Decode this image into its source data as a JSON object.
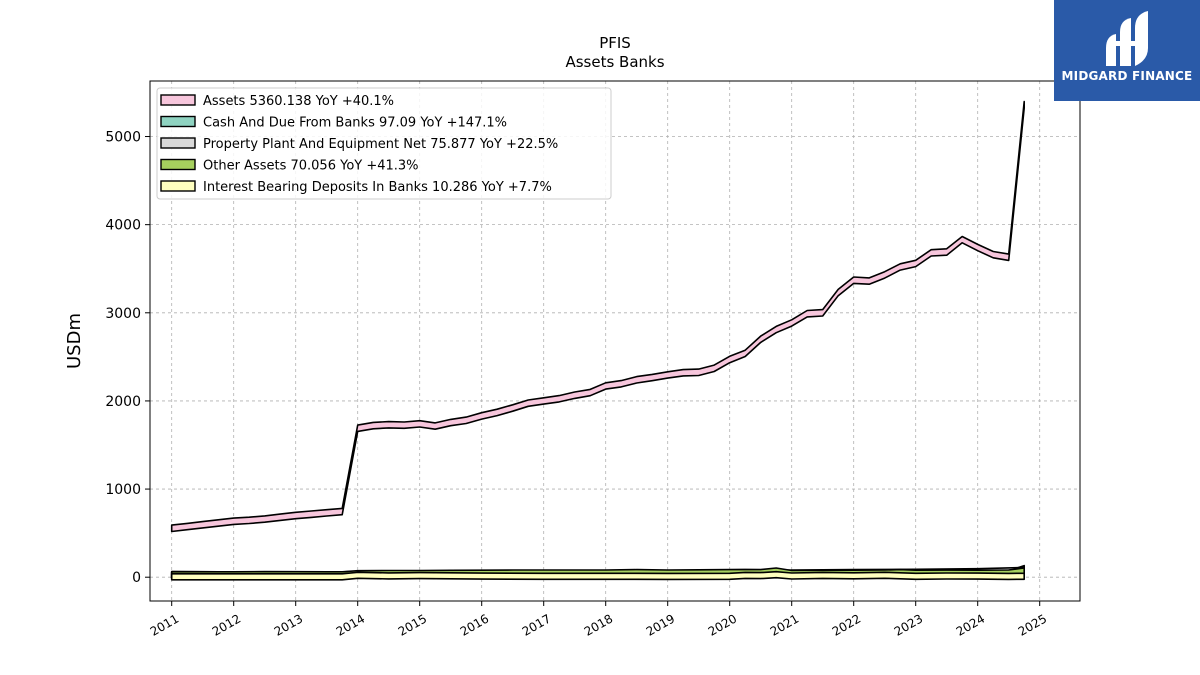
{
  "brand": {
    "name": "MIDGARD FINANCE",
    "color": "#2a5aa8",
    "icon": "midgard-logo-icon"
  },
  "chart_data": {
    "type": "area",
    "title": "PFIS",
    "subtitle": "Assets Banks",
    "ylabel": "USDm",
    "xlabel": "",
    "ylim": [
      -270,
      5630
    ],
    "xlim": [
      2010.65,
      2025.65
    ],
    "yticks": [
      0,
      1000,
      2000,
      3000,
      4000,
      5000
    ],
    "xticks": [
      "2011",
      "2012",
      "2013",
      "2014",
      "2015",
      "2016",
      "2017",
      "2018",
      "2019",
      "2020",
      "2021",
      "2022",
      "2023",
      "2024",
      "2025"
    ],
    "grid": true,
    "legend_position": "top-left",
    "series": [
      {
        "name": "Assets  5360.138 YoY +40.1%",
        "color": "#f7c6dc",
        "x": [
          2011.0,
          2011.25,
          2011.5,
          2011.75,
          2012.0,
          2012.25,
          2012.5,
          2012.75,
          2013.0,
          2013.25,
          2013.5,
          2013.75,
          2014.0,
          2014.25,
          2014.5,
          2014.75,
          2015.0,
          2015.25,
          2015.5,
          2015.75,
          2016.0,
          2016.25,
          2016.5,
          2016.75,
          2017.0,
          2017.25,
          2017.5,
          2017.75,
          2018.0,
          2018.25,
          2018.5,
          2018.75,
          2019.0,
          2019.25,
          2019.5,
          2019.75,
          2020.0,
          2020.25,
          2020.5,
          2020.75,
          2021.0,
          2021.25,
          2021.5,
          2021.75,
          2022.0,
          2022.25,
          2022.5,
          2022.75,
          2023.0,
          2023.25,
          2023.5,
          2023.75,
          2024.0,
          2024.25,
          2024.5,
          2024.75
        ],
        "values": [
          555,
          575,
          595,
          615,
          635,
          645,
          660,
          680,
          700,
          715,
          730,
          745,
          1690,
          1720,
          1730,
          1725,
          1740,
          1715,
          1755,
          1780,
          1830,
          1870,
          1920,
          1975,
          2000,
          2025,
          2065,
          2095,
          2170,
          2195,
          2240,
          2265,
          2295,
          2320,
          2325,
          2370,
          2470,
          2540,
          2700,
          2810,
          2885,
          2990,
          3000,
          3230,
          3370,
          3360,
          3430,
          3520,
          3560,
          3680,
          3690,
          3830,
          3740,
          3660,
          3630,
          5360.138
        ]
      },
      {
        "name": "Cash And Due From Banks  97.09 YoY +147.1%",
        "color": "#8fd3c1",
        "x": [
          2011.0,
          2011.5,
          2012.0,
          2012.5,
          2013.0,
          2013.5,
          2013.75,
          2014.0,
          2014.5,
          2015.0,
          2015.5,
          2016.0,
          2016.5,
          2017.0,
          2017.5,
          2018.0,
          2018.5,
          2019.0,
          2019.5,
          2020.0,
          2020.5,
          2020.75,
          2021.0,
          2021.5,
          2022.0,
          2022.5,
          2023.0,
          2023.5,
          2024.0,
          2024.5,
          2024.75
        ],
        "values": [
          30,
          28,
          26,
          28,
          27,
          26,
          26,
          34,
          30,
          32,
          33,
          35,
          36,
          36,
          38,
          37,
          40,
          38,
          40,
          42,
          48,
          52,
          42,
          40,
          38,
          40,
          40,
          38,
          40,
          39,
          97.09
        ]
      },
      {
        "name": "Property Plant And Equipment Net  75.877 YoY +22.5%",
        "color": "#d9d9d9",
        "x": [
          2011.0,
          2012.0,
          2013.0,
          2013.75,
          2014.0,
          2015.0,
          2016.0,
          2017.0,
          2018.0,
          2019.0,
          2020.0,
          2021.0,
          2022.0,
          2023.0,
          2024.0,
          2024.75
        ],
        "values": [
          20,
          21,
          22,
          22,
          30,
          32,
          34,
          35,
          36,
          38,
          42,
          48,
          52,
          56,
          62,
          75.877
        ]
      },
      {
        "name": "Other Assets  70.056 YoY +41.3%",
        "color": "#a6d05e",
        "x": [
          2011.0,
          2011.5,
          2012.0,
          2012.5,
          2013.0,
          2013.5,
          2013.75,
          2014.0,
          2014.5,
          2015.0,
          2015.5,
          2016.0,
          2016.5,
          2017.0,
          2017.5,
          2018.0,
          2018.5,
          2019.0,
          2019.5,
          2020.0,
          2020.25,
          2020.5,
          2020.75,
          2021.0,
          2021.5,
          2022.0,
          2022.5,
          2022.75,
          2023.0,
          2023.5,
          2024.0,
          2024.5,
          2024.75
        ],
        "values": [
          28,
          27,
          27,
          28,
          28,
          27,
          27,
          40,
          42,
          42,
          44,
          46,
          48,
          48,
          48,
          48,
          52,
          48,
          50,
          52,
          55,
          52,
          70,
          42,
          44,
          45,
          48,
          52,
          45,
          47,
          46,
          48,
          70.056
        ]
      },
      {
        "name": "Interest Bearing Deposits In Banks  10.286 YoY +7.7%",
        "color": "#ffffbf",
        "x": [
          2011.0,
          2012.0,
          2013.0,
          2013.75,
          2014.0,
          2014.5,
          2015.0,
          2016.0,
          2017.0,
          2018.0,
          2019.0,
          2020.0,
          2020.25,
          2020.5,
          2020.75,
          2021.0,
          2021.5,
          2022.0,
          2022.5,
          2023.0,
          2023.5,
          2024.0,
          2024.5,
          2024.75
        ],
        "values": [
          5,
          5,
          5,
          5,
          22,
          15,
          18,
          12,
          10,
          10,
          9,
          10,
          20,
          18,
          28,
          14,
          20,
          16,
          22,
          10,
          14,
          12,
          9,
          10.286
        ]
      }
    ]
  }
}
